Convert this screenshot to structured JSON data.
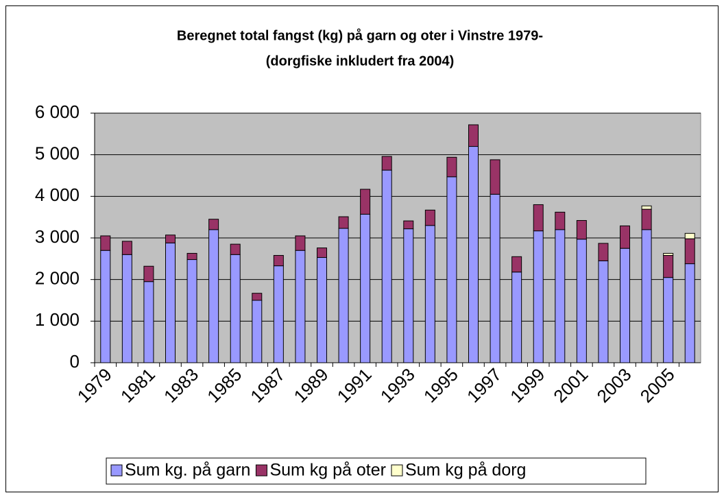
{
  "chart_data": {
    "type": "stacked_bar",
    "title": [
      "Beregnet total fangst (kg)  på garn og oter i Vinstre 1979-",
      "(dorgfiske inkludert fra 2004)"
    ],
    "categories": [
      "1979",
      null,
      "1981",
      null,
      "1983",
      null,
      "1985",
      null,
      "1987",
      null,
      "1989",
      null,
      "1991",
      null,
      "1993",
      null,
      "1995",
      null,
      "1997",
      null,
      "1999",
      null,
      "2001",
      null,
      "2003",
      null,
      "2005",
      null
    ],
    "series": [
      {
        "name": "Sum kg. på garn",
        "color": "#9999ff",
        "values": [
          2700,
          2600,
          1950,
          2880,
          2480,
          3200,
          2600,
          1500,
          2330,
          2700,
          2530,
          3230,
          3570,
          4630,
          3220,
          3300,
          4470,
          5200,
          4050,
          2180,
          3170,
          3200,
          2970,
          2450,
          2750,
          3200,
          2050,
          2380
        ]
      },
      {
        "name": "Sum kg på oter",
        "color": "#993366",
        "values": [
          350,
          320,
          370,
          190,
          150,
          250,
          250,
          170,
          250,
          350,
          230,
          280,
          600,
          330,
          190,
          370,
          470,
          520,
          830,
          370,
          630,
          420,
          450,
          420,
          540,
          490,
          530,
          600
        ]
      },
      {
        "name": "Sum kg på dorg",
        "color": "#ffffcc",
        "values": [
          0,
          0,
          0,
          0,
          0,
          0,
          0,
          0,
          0,
          0,
          0,
          0,
          0,
          0,
          0,
          0,
          0,
          0,
          0,
          0,
          0,
          0,
          0,
          0,
          0,
          80,
          50,
          130
        ]
      }
    ],
    "ylim": [
      0,
      6000
    ],
    "yticks": [
      0,
      {
        "value": 1000,
        "label": "1 000"
      },
      {
        "value": 2000,
        "label": "2 000"
      },
      {
        "value": 3000,
        "label": "3 000"
      },
      {
        "value": 4000,
        "label": "4 000"
      },
      {
        "value": 5000,
        "label": "5 000"
      },
      {
        "value": 6000,
        "label": "6 000"
      }
    ],
    "grid": true,
    "plot_background": "#c0c0c0",
    "legend": "bottom"
  }
}
